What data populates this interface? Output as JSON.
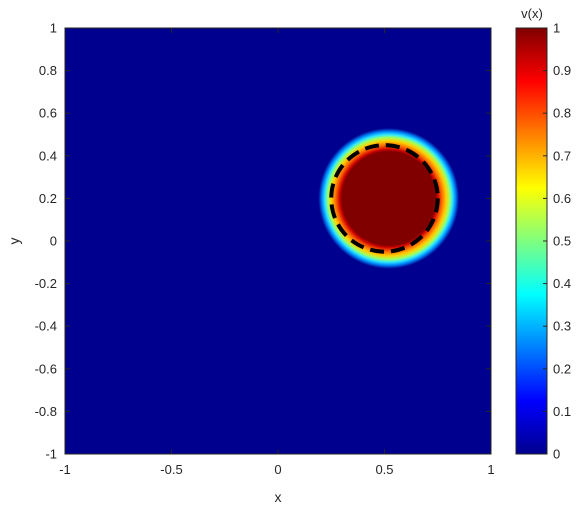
{
  "chart_data": {
    "type": "heatmap",
    "title": "",
    "xlabel": "x",
    "ylabel": "y",
    "colorbar_label": "v(x)",
    "colormap": "jet",
    "xlim": [
      -1,
      1
    ],
    "ylim": [
      -1,
      1
    ],
    "clim": [
      0,
      1
    ],
    "x_ticks": [
      -1,
      -0.5,
      0,
      0.5,
      1
    ],
    "x_tick_labels": [
      "-1",
      "-0.5",
      "0",
      "0.5",
      "1"
    ],
    "y_ticks": [
      1,
      0.8,
      0.6,
      0.4,
      0.2,
      0,
      -0.2,
      -0.4,
      -0.6,
      -0.8,
      -1
    ],
    "y_tick_labels": [
      "1",
      "0.8",
      "0.6",
      "0.4",
      "0.2",
      "0",
      "-0.2",
      "-0.4",
      "-0.6",
      "-0.8",
      "-1"
    ],
    "colorbar_ticks": [
      1,
      0.9,
      0.8,
      0.7,
      0.6,
      0.5,
      0.4,
      0.3,
      0.2,
      0.1,
      0
    ],
    "colorbar_tick_labels": [
      "1",
      "0.9",
      "0.8",
      "0.7",
      "0.6",
      "0.5",
      "0.4",
      "0.3",
      "0.2",
      "0.1",
      "0"
    ],
    "background_value": 0,
    "field": {
      "center": [
        0.52,
        0.2
      ],
      "core_radius": 0.22,
      "outer_radius": 0.33,
      "core_value": 1
    },
    "overlay_circle": {
      "center": [
        0.5,
        0.2
      ],
      "radius": 0.25,
      "style": "dashed",
      "color": "#000000"
    },
    "grid": false
  }
}
